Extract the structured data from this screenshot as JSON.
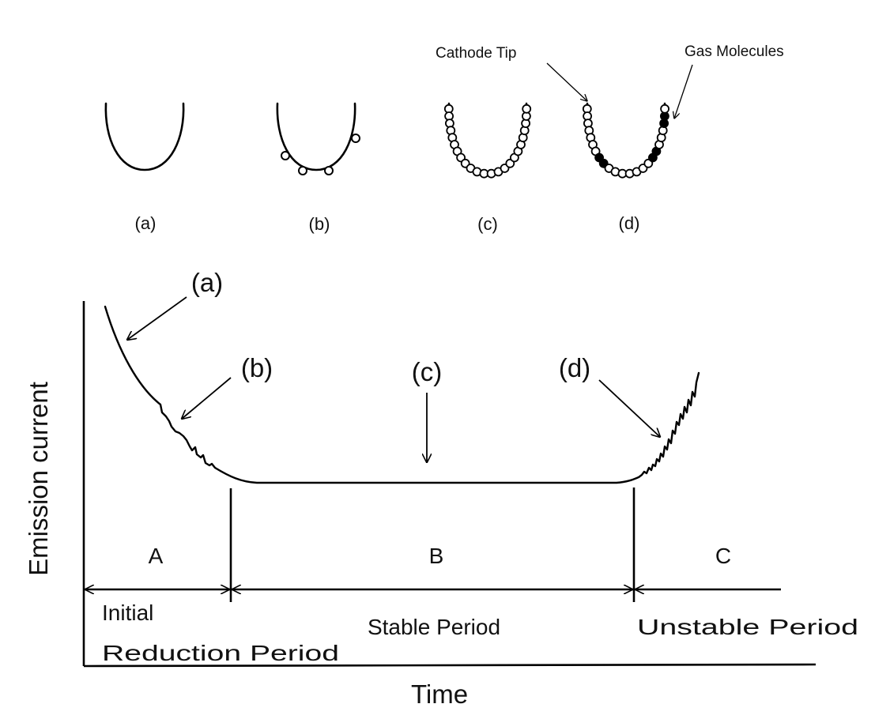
{
  "annotations": {
    "cathode_tip": "Cathode Tip",
    "gas_molecules": "Gas Molecules"
  },
  "panels": [
    {
      "label": "(a)"
    },
    {
      "label": "(b)"
    },
    {
      "label": "(c)"
    },
    {
      "label": "(d)"
    }
  ],
  "graph": {
    "ylabel": "Emission current",
    "xlabel": "Time",
    "callouts": [
      "(a)",
      "(b)",
      "(c)",
      "(d)"
    ],
    "regions": [
      {
        "letter": "A",
        "period_line1": "Initial",
        "period_line2": "Reduction Period"
      },
      {
        "letter": "B",
        "period": "Stable Period"
      },
      {
        "letter": "C",
        "period": "Unstable Period"
      }
    ]
  },
  "colors": {
    "ink": "#000000",
    "background": "#ffffff"
  }
}
